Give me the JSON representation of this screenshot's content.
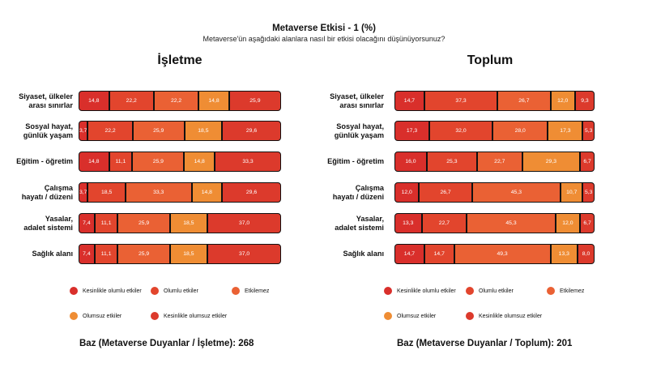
{
  "title": "Metaverse Etkisi - 1 (%)",
  "subtitle": "Metaverse'ün aşağıdaki alanlara nasıl bir etkisi olacağını düşünüyorsunuz?",
  "legend": [
    {
      "label": "Kesinlikle olumlu etkiler",
      "color": "#d92f2b"
    },
    {
      "label": "Olumlu etkiler",
      "color": "#e2452d"
    },
    {
      "label": "Etkilemez",
      "color": "#ea6134"
    },
    {
      "label": "Olumsuz etkiler",
      "color": "#ef8d34"
    },
    {
      "label": "Kesinlikle olumsuz etkiler",
      "color": "#dc3a2c"
    }
  ],
  "chart_data": [
    {
      "type": "bar",
      "orientation": "horizontal",
      "stacked": true,
      "title": "İşletme",
      "base": "Baz (Metaverse Duyanlar / İşletme): 268",
      "categories": [
        [
          "Siyaset, ülkeler",
          "arası sınırlar"
        ],
        [
          "Sosyal hayat,",
          "günlük yaşam"
        ],
        [
          "Eğitim - öğretim"
        ],
        [
          "Çalışma",
          "hayatı / düzeni"
        ],
        [
          "Yasalar,",
          "adalet sistemi"
        ],
        [
          "Sağlık alanı"
        ]
      ],
      "series": [
        {
          "name": "Kesinlikle olumlu etkiler",
          "values": [
            "14,8",
            "3,7",
            "14,8",
            "3,7",
            "7,4",
            "7,4"
          ]
        },
        {
          "name": "Olumlu etkiler",
          "values": [
            "22,2",
            "22,2",
            "11,1",
            "18,5",
            "11,1",
            "11,1"
          ]
        },
        {
          "name": "Etkilemez",
          "values": [
            "22,2",
            "25,9",
            "25,9",
            "33,3",
            "25,9",
            "25,9"
          ]
        },
        {
          "name": "Olumsuz etkiler",
          "values": [
            "14,8",
            "18,5",
            "14,8",
            "14,8",
            "18,5",
            "18,5"
          ]
        },
        {
          "name": "Kesinlikle olumsuz etkiler",
          "values": [
            "25,9",
            "29,6",
            "33,3",
            "29,6",
            "37,0",
            "37,0"
          ]
        }
      ]
    },
    {
      "type": "bar",
      "orientation": "horizontal",
      "stacked": true,
      "title": "Toplum",
      "base": "Baz (Metaverse Duyanlar / Toplum): 201",
      "categories": [
        [
          "Siyaset, ülkeler",
          "arası sınırlar"
        ],
        [
          "Sosyal hayat,",
          "günlük yaşam"
        ],
        [
          "Eğitim - öğretim"
        ],
        [
          "Çalışma",
          "hayatı / düzeni"
        ],
        [
          "Yasalar,",
          "adalet sistemi"
        ],
        [
          "Sağlık alanı"
        ]
      ],
      "series": [
        {
          "name": "Kesinlikle olumlu etkiler",
          "values": [
            "14,7",
            "17,3",
            "16,0",
            "12,0",
            "13,3",
            "14,7"
          ]
        },
        {
          "name": "Olumlu etkiler",
          "values": [
            "37,3",
            "32,0",
            "25,3",
            "26,7",
            "22,7",
            "14,7"
          ]
        },
        {
          "name": "Etkilemez",
          "values": [
            "26,7",
            "28,0",
            "22,7",
            "45,3",
            "45,3",
            "49,3"
          ]
        },
        {
          "name": "Olumsuz etkiler",
          "values": [
            "12,0",
            "17,3",
            "29,3",
            "10,7",
            "12,0",
            "13,3"
          ]
        },
        {
          "name": "Kesinlikle olumsuz etkiler",
          "values": [
            "9,3",
            "5,3",
            "6,7",
            "5,3",
            "6,7",
            "8,0"
          ]
        }
      ]
    }
  ]
}
